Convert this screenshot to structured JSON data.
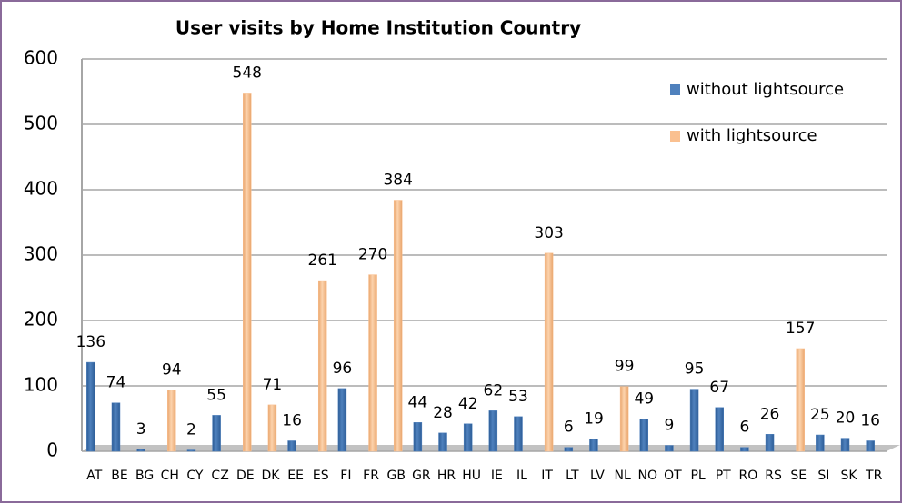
{
  "chart_data": {
    "type": "bar",
    "title": "User visits by Home Institution Country",
    "categories": [
      "AT",
      "BE",
      "BG",
      "CH",
      "CY",
      "CZ",
      "DE",
      "DK",
      "EE",
      "ES",
      "FI",
      "FR",
      "GB",
      "GR",
      "HR",
      "HU",
      "IE",
      "IL",
      "IT",
      "LT",
      "LV",
      "NL",
      "NO",
      "OT",
      "PL",
      "PT",
      "RO",
      "RS",
      "SE",
      "SI",
      "SK",
      "TR"
    ],
    "series": [
      {
        "name": "without lightsource",
        "color": "#4f81bd",
        "values": [
          136,
          74,
          3,
          null,
          2,
          55,
          null,
          null,
          16,
          null,
          96,
          null,
          null,
          44,
          28,
          42,
          62,
          53,
          null,
          6,
          19,
          null,
          49,
          9,
          95,
          67,
          6,
          26,
          null,
          25,
          20,
          16
        ]
      },
      {
        "name": "with lightsource",
        "color": "#fac090",
        "values": [
          null,
          null,
          null,
          94,
          null,
          null,
          548,
          71,
          null,
          261,
          null,
          270,
          384,
          null,
          null,
          null,
          null,
          null,
          303,
          null,
          null,
          99,
          null,
          null,
          null,
          null,
          null,
          null,
          157,
          null,
          null,
          null
        ]
      }
    ],
    "ylim": [
      0,
      600
    ],
    "yticks": [
      0,
      100,
      200,
      300,
      400,
      500,
      600
    ],
    "grid": true,
    "legend": "upper right"
  }
}
